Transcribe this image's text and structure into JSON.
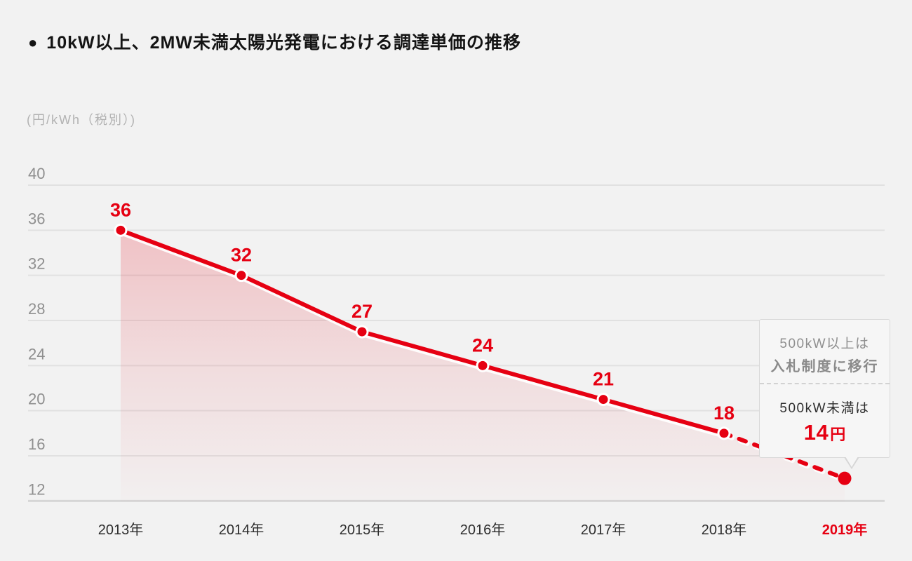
{
  "page": {
    "background": "#f2f2f2"
  },
  "header": {
    "bullet": "●",
    "title": "10kW以上、2MW未満太陽光発電における調達単価の推移"
  },
  "chart_data": {
    "type": "line",
    "title": "10kW以上、2MW未満太陽光発電における調達単価の推移",
    "unit_label": "(円/kWh（税別）)",
    "categories": [
      "2013年",
      "2014年",
      "2015年",
      "2016年",
      "2017年",
      "2018年",
      "2019年"
    ],
    "values": [
      36,
      32,
      27,
      24,
      21,
      18,
      14
    ],
    "point_labels": [
      "36",
      "32",
      "27",
      "24",
      "21",
      "18",
      ""
    ],
    "solid_segment_end_index": 5,
    "dashed_segment": [
      5,
      6
    ],
    "yticks": [
      40,
      36,
      32,
      28,
      24,
      20,
      16,
      12
    ],
    "ylim": [
      12,
      40
    ],
    "grid": true,
    "legend_position": "none",
    "highlight_last_category": true,
    "colors": {
      "accent": "#e60012",
      "grid": "#e1e1e1",
      "axis": "#d6d6d6",
      "tick_text": "#8f8f8f",
      "xlabel_text": "#2d2d2d",
      "area_top": "rgba(230,0,18,0.20)",
      "area_mid": "rgba(230,0,18,0.09)",
      "area_bottom": "rgba(230,0,18,0.01)"
    }
  },
  "callout": {
    "top_line1": "500kW以上は",
    "top_line2": "入札制度に移行",
    "bottom_line": "500kW未満は",
    "price_value": "14",
    "price_unit": "円"
  }
}
